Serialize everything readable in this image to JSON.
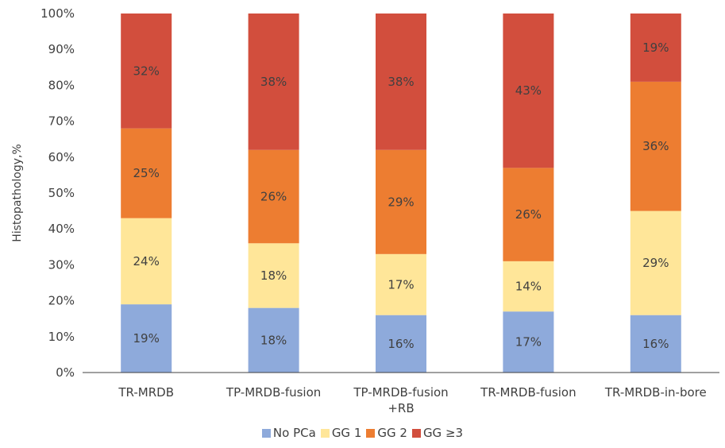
{
  "chart_data": {
    "type": "bar",
    "stacked": true,
    "categories": [
      "TR-MRDB",
      "TP-MRDB-fusion",
      "TP-MRDB-fusion\n+RB",
      "TR-MRDB-fusion",
      "TR-MRDB-in-bore"
    ],
    "series": [
      {
        "name": "No PCa",
        "color": "#8eaadb",
        "values": [
          19,
          18,
          16,
          17,
          16
        ],
        "labels": [
          "19%",
          "18%",
          "16%",
          "17%",
          "16%"
        ]
      },
      {
        "name": "GG 1",
        "color": "#ffe699",
        "values": [
          24,
          18,
          17,
          14,
          29
        ],
        "labels": [
          "24%",
          "18%",
          "17%",
          "14%",
          "29%"
        ]
      },
      {
        "name": "GG 2",
        "color": "#ed7d31",
        "values": [
          25,
          26,
          29,
          26,
          36
        ],
        "labels": [
          "25%",
          "26%",
          "29%",
          "26%",
          "36%"
        ]
      },
      {
        "name": "GG ≥3",
        "color": "#d24e3d",
        "values": [
          32,
          38,
          38,
          43,
          19
        ],
        "labels": [
          "32%",
          "38%",
          "38%",
          "43%",
          "19%"
        ]
      }
    ],
    "ylabel": "Histopathology,%",
    "xlabel": "",
    "ylim": [
      0,
      100
    ],
    "yticks": [
      "0%",
      "10%",
      "20%",
      "30%",
      "40%",
      "50%",
      "60%",
      "70%",
      "80%",
      "90%",
      "100%"
    ],
    "grid": false,
    "legend_position": "bottom"
  }
}
